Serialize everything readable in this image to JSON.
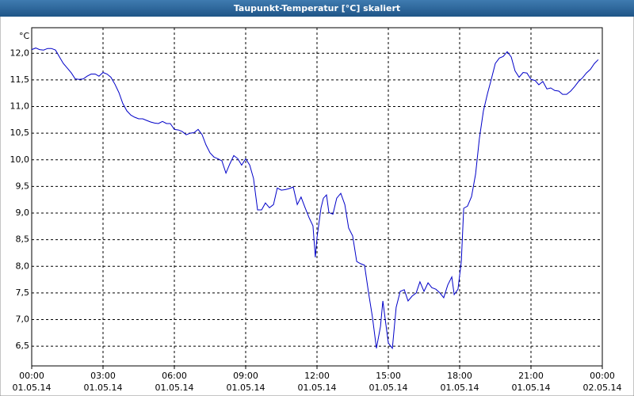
{
  "chart_data": {
    "type": "line",
    "title": "Taupunkt-Temperatur [°C] skaliert",
    "y_unit": "°C",
    "color": "#0000c8",
    "grid": true,
    "x": [
      0,
      0.17,
      0.33,
      0.5,
      0.67,
      0.83,
      1.0,
      1.17,
      1.33,
      1.5,
      1.67,
      1.83,
      2.0,
      2.17,
      2.33,
      2.5,
      2.67,
      2.83,
      3.0,
      3.17,
      3.33,
      3.5,
      3.67,
      3.83,
      4.0,
      4.17,
      4.33,
      4.5,
      4.67,
      4.83,
      5.0,
      5.17,
      5.33,
      5.5,
      5.67,
      5.83,
      6.0,
      6.17,
      6.33,
      6.5,
      6.67,
      6.83,
      7.0,
      7.17,
      7.33,
      7.5,
      7.67,
      7.83,
      8.0,
      8.17,
      8.33,
      8.5,
      8.67,
      8.83,
      9.0,
      9.17,
      9.33,
      9.5,
      9.67,
      9.83,
      10.0,
      10.17,
      10.33,
      10.5,
      10.67,
      10.83,
      11.0,
      11.17,
      11.33,
      11.5,
      11.67,
      11.83,
      11.93,
      12.0,
      12.17,
      12.27,
      12.4,
      12.5,
      12.67,
      12.83,
      13.0,
      13.17,
      13.33,
      13.5,
      13.67,
      13.83,
      14.0,
      14.17,
      14.33,
      14.5,
      14.67,
      14.77,
      14.9,
      15.0,
      15.17,
      15.33,
      15.5,
      15.67,
      15.83,
      16.0,
      16.17,
      16.33,
      16.5,
      16.67,
      16.83,
      17.0,
      17.17,
      17.33,
      17.5,
      17.67,
      17.77,
      17.93,
      18.07,
      18.17,
      18.33,
      18.5,
      18.67,
      18.83,
      19.0,
      19.17,
      19.33,
      19.5,
      19.67,
      19.83,
      20.0,
      20.17,
      20.33,
      20.5,
      20.67,
      20.83,
      21.0,
      21.17,
      21.33,
      21.5,
      21.67,
      21.83,
      22.0,
      22.17,
      22.33,
      22.5,
      22.67,
      22.83,
      23.0,
      23.17,
      23.33,
      23.5,
      23.67,
      23.83
    ],
    "values": [
      12.07,
      12.1,
      12.07,
      12.06,
      12.09,
      12.09,
      12.06,
      11.93,
      11.81,
      11.72,
      11.63,
      11.52,
      11.51,
      11.52,
      11.57,
      11.61,
      11.61,
      11.57,
      11.64,
      11.61,
      11.55,
      11.42,
      11.26,
      11.06,
      10.92,
      10.84,
      10.8,
      10.77,
      10.77,
      10.74,
      10.71,
      10.69,
      10.68,
      10.72,
      10.68,
      10.68,
      10.57,
      10.56,
      10.53,
      10.47,
      10.5,
      10.51,
      10.57,
      10.47,
      10.28,
      10.13,
      10.05,
      10.02,
      9.98,
      9.75,
      9.92,
      10.08,
      10.02,
      9.9,
      10.02,
      9.9,
      9.65,
      9.06,
      9.06,
      9.19,
      9.1,
      9.16,
      9.47,
      9.43,
      9.44,
      9.46,
      9.49,
      9.16,
      9.3,
      9.1,
      8.91,
      8.76,
      8.17,
      8.54,
      9.1,
      9.28,
      9.34,
      9.01,
      8.98,
      9.28,
      9.37,
      9.16,
      8.72,
      8.57,
      8.09,
      8.05,
      8.02,
      7.5,
      7.05,
      6.46,
      6.87,
      7.35,
      6.9,
      6.56,
      6.46,
      7.23,
      7.53,
      7.56,
      7.35,
      7.44,
      7.5,
      7.71,
      7.53,
      7.69,
      7.6,
      7.57,
      7.5,
      7.41,
      7.65,
      7.8,
      7.47,
      7.57,
      8.09,
      9.09,
      9.13,
      9.31,
      9.73,
      10.4,
      10.92,
      11.24,
      11.51,
      11.81,
      11.91,
      11.94,
      12.03,
      11.93,
      11.67,
      11.55,
      11.64,
      11.63,
      11.51,
      11.49,
      11.41,
      11.47,
      11.33,
      11.35,
      11.3,
      11.29,
      11.23,
      11.23,
      11.29,
      11.37,
      11.47,
      11.54,
      11.63,
      11.7,
      11.81,
      11.88
    ],
    "xlim": [
      0,
      24
    ],
    "xticks": [
      {
        "value": 0,
        "label": "00:00"
      },
      {
        "value": 3,
        "label": "03:00"
      },
      {
        "value": 6,
        "label": "06:00"
      },
      {
        "value": 9,
        "label": "09:00"
      },
      {
        "value": 12,
        "label": "12:00"
      },
      {
        "value": 15,
        "label": "15:00"
      },
      {
        "value": 18,
        "label": "18:00"
      },
      {
        "value": 21,
        "label": "21:00"
      },
      {
        "value": 24,
        "label": "00:00"
      }
    ],
    "xtick_dates": [
      "01.05.14",
      "01.05.14",
      "01.05.14",
      "01.05.14",
      "01.05.14",
      "01.05.14",
      "01.05.14",
      "01.05.14",
      "02.05.14"
    ],
    "ylim": [
      6.13,
      12.48
    ],
    "yticks": [
      {
        "value": 6.5,
        "label": "6,5"
      },
      {
        "value": 7,
        "label": "7,0"
      },
      {
        "value": 7.5,
        "label": "7,5"
      },
      {
        "value": 8,
        "label": "8,0"
      },
      {
        "value": 8.5,
        "label": "8,5"
      },
      {
        "value": 9,
        "label": "9,0"
      },
      {
        "value": 9.5,
        "label": "9,5"
      },
      {
        "value": 10,
        "label": "10,0"
      },
      {
        "value": 10.5,
        "label": "10,5"
      },
      {
        "value": 11,
        "label": "11,0"
      },
      {
        "value": 11.5,
        "label": "11,5"
      },
      {
        "value": 12,
        "label": "12,0"
      }
    ]
  }
}
